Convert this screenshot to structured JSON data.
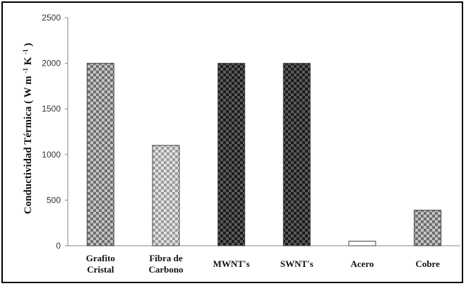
{
  "chart_data": {
    "type": "bar",
    "title": "",
    "xlabel": "",
    "ylabel": "Conductividad Térmica",
    "ylabel_unit": {
      "open": "(",
      "w": "W",
      "m": " m",
      "m_exp": "-1",
      "k": " K",
      "k_exp": "-1",
      "close": ")"
    },
    "ylim": [
      0,
      2500
    ],
    "yticks": [
      "0",
      "500",
      "1000",
      "1500",
      "2000",
      "2500"
    ],
    "categories": [
      [
        "Grafito",
        "Cristal"
      ],
      [
        "Fibra de",
        "Carbono"
      ],
      [
        "MWNT's"
      ],
      [
        "SWNT's"
      ],
      [
        "Acero"
      ],
      [
        "Cobre"
      ]
    ],
    "values": [
      2000,
      1100,
      2000,
      2000,
      50,
      390
    ],
    "bar_styles": [
      "check-medium",
      "check-light",
      "check-dark",
      "check-dark",
      "plain-white",
      "check-medium"
    ],
    "grid": false,
    "legend": "none"
  },
  "colors": {
    "axis": "#888888",
    "bar_outline": "#444444",
    "check_dark_a": "#1c1c1c",
    "check_dark_b": "#5a5a5a",
    "check_medium_a": "#6e6e6e",
    "check_medium_b": "#c4c4c4",
    "check_light_a": "#9a9a9a",
    "check_light_b": "#e2e2e2"
  }
}
